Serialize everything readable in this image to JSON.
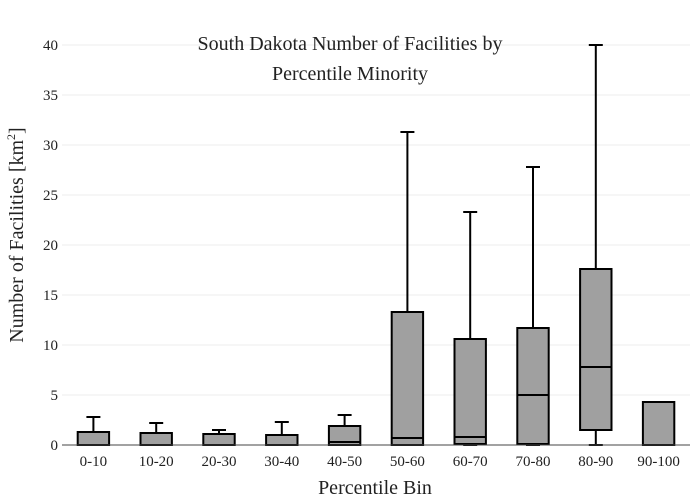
{
  "chart_data": {
    "type": "box",
    "title_lines": [
      "South Dakota Number of Facilities by",
      "Percentile Minority"
    ],
    "xlabel": "Percentile Bin",
    "ylabel": "Number of Facilities  [km",
    "ylabel_sup": "2",
    "ylabel_close": "]",
    "ylim": [
      0,
      40
    ],
    "yticks": [
      0,
      5,
      10,
      15,
      20,
      25,
      30,
      35,
      40
    ],
    "grid": true,
    "box_color": "#a0a0a0",
    "line_color": "#000000",
    "categories": [
      "0-10",
      "10-20",
      "20-30",
      "30-40",
      "40-50",
      "50-60",
      "60-70",
      "70-80",
      "80-90",
      "90-100"
    ],
    "boxes": [
      {
        "min": 0,
        "q1": 0,
        "median": 0,
        "q3": 1.3,
        "max": 2.8
      },
      {
        "min": 0,
        "q1": 0,
        "median": 0,
        "q3": 1.2,
        "max": 2.2
      },
      {
        "min": 0,
        "q1": 0,
        "median": 0,
        "q3": 1.1,
        "max": 1.5
      },
      {
        "min": 0,
        "q1": 0,
        "median": 0,
        "q3": 1.0,
        "max": 2.3
      },
      {
        "min": 0,
        "q1": 0,
        "median": 0.3,
        "q3": 1.9,
        "max": 3.0
      },
      {
        "min": 0,
        "q1": 0,
        "median": 0.7,
        "q3": 13.3,
        "max": 31.3
      },
      {
        "min": 0,
        "q1": 0.1,
        "median": 0.8,
        "q3": 10.6,
        "max": 23.3
      },
      {
        "min": 0,
        "q1": 0.1,
        "median": 5.0,
        "q3": 11.7,
        "max": 27.8
      },
      {
        "min": 0,
        "q1": 1.5,
        "median": 7.8,
        "q3": 17.6,
        "max": 40.0
      },
      {
        "min": 0,
        "q1": 0,
        "median": 0,
        "q3": 4.3,
        "max": 4.3
      }
    ]
  }
}
